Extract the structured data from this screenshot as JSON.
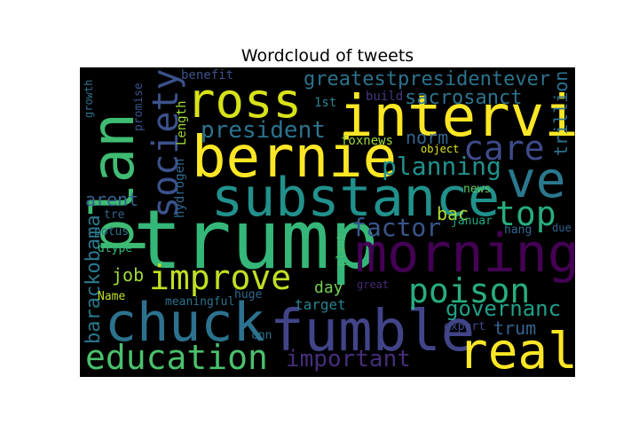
{
  "chart_data": {
    "type": "wordcloud",
    "title": "Wordcloud of tweets",
    "background": "#000000",
    "words": [
      {
        "text": "trump",
        "color": "#35b779"
      },
      {
        "text": "morning",
        "color": "#440154"
      },
      {
        "text": "substance",
        "color": "#21918c"
      },
      {
        "text": "bernie",
        "color": "#fde725"
      },
      {
        "text": "intervi",
        "color": "#fde725"
      },
      {
        "text": "chuck",
        "color": "#2c728e"
      },
      {
        "text": "fumble",
        "color": "#414487"
      },
      {
        "text": "ross",
        "color": "#d8e219"
      },
      {
        "text": "plan",
        "color": "#3fbc73"
      },
      {
        "text": "real",
        "color": "#fde725"
      },
      {
        "text": "ve",
        "color": "#2a788e"
      },
      {
        "text": "society",
        "color": "#3b528b"
      },
      {
        "text": "education",
        "color": "#4ac16d"
      },
      {
        "text": "improve",
        "color": "#c2df23"
      },
      {
        "text": "poison",
        "color": "#27ad81"
      },
      {
        "text": "care",
        "color": "#3e4a89"
      },
      {
        "text": "top",
        "color": "#27ad81"
      },
      {
        "text": "planning",
        "color": "#21918c"
      },
      {
        "text": "factor",
        "color": "#39568c"
      },
      {
        "text": "president",
        "color": "#2c728e"
      },
      {
        "text": "important",
        "color": "#472d7b"
      },
      {
        "text": "greatestpresidentever",
        "color": "#2c728e"
      },
      {
        "text": "governanc",
        "color": "#1fa088"
      },
      {
        "text": "sacrosanct",
        "color": "#2c728e"
      },
      {
        "text": "barackobama",
        "color": "#2a788e"
      },
      {
        "text": "trillion",
        "color": "#2c728e"
      },
      {
        "text": "norm",
        "color": "#33638d"
      },
      {
        "text": "bac",
        "color": "#addc30"
      },
      {
        "text": "trum",
        "color": "#33638d"
      },
      {
        "text": "arent",
        "color": "#33638d"
      },
      {
        "text": "job",
        "color": "#a0da39"
      },
      {
        "text": "day",
        "color": "#75d054"
      },
      {
        "text": "target",
        "color": "#26828e"
      },
      {
        "text": "hydrogen",
        "color": "#31688e"
      },
      {
        "text": "Length",
        "color": "#a2da37"
      },
      {
        "text": "foxnews",
        "color": "#9bd93c"
      },
      {
        "text": "promise",
        "color": "#3b528b"
      },
      {
        "text": "growth",
        "color": "#2d708e"
      },
      {
        "text": "benefit",
        "color": "#3b528b"
      },
      {
        "text": "build",
        "color": "#453781"
      },
      {
        "text": "1st",
        "color": "#26828e"
      },
      {
        "text": "potus",
        "color": "#2c728e"
      },
      {
        "text": "tre",
        "color": "#33638d"
      },
      {
        "text": "dtype",
        "color": "#35b779"
      },
      {
        "text": "Name",
        "color": "#bddf26"
      },
      {
        "text": "meaningful",
        "color": "#2c728e"
      },
      {
        "text": "huge",
        "color": "#31688e"
      },
      {
        "text": "cnn",
        "color": "#2c728e"
      },
      {
        "text": "plant",
        "color": "#4ac16d"
      },
      {
        "text": "great",
        "color": "#482878"
      },
      {
        "text": "export",
        "color": "#3e4a89"
      },
      {
        "text": "news",
        "color": "#63cb5f"
      },
      {
        "text": "januar",
        "color": "#22a884"
      },
      {
        "text": "hang",
        "color": "#31688e"
      },
      {
        "text": "due",
        "color": "#33638d"
      },
      {
        "text": "object",
        "color": "#dde318"
      }
    ]
  }
}
